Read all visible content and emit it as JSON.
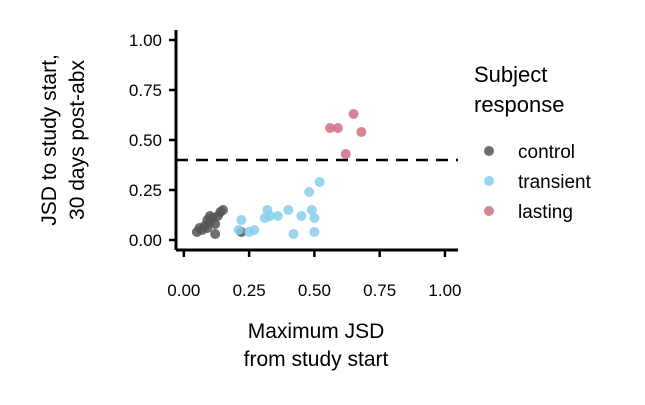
{
  "chart_data": {
    "type": "scatter",
    "title": "",
    "xlabel_lines": [
      "Maximum JSD",
      "from study start"
    ],
    "ylabel_lines": [
      "JSD to study start,",
      "30 days post-abx"
    ],
    "xlim": [
      -0.03,
      1.05
    ],
    "ylim": [
      -0.05,
      1.05
    ],
    "x_ticks": [
      0.0,
      0.25,
      0.5,
      0.75,
      1.0
    ],
    "x_tick_labels": [
      "0.00",
      "0.25",
      "0.50",
      "0.75",
      "1.00"
    ],
    "y_ticks": [
      0.0,
      0.25,
      0.5,
      0.75,
      1.0
    ],
    "y_tick_labels": [
      "0.00",
      "0.25",
      "0.50",
      "0.75",
      "1.00"
    ],
    "hline": 0.4,
    "grid": false,
    "legend": {
      "title_lines": [
        "Subject",
        "response"
      ],
      "placement": "right"
    },
    "series": [
      {
        "name": "control",
        "color": "#555555",
        "points": [
          [
            0.05,
            0.04
          ],
          [
            0.07,
            0.05
          ],
          [
            0.08,
            0.07
          ],
          [
            0.09,
            0.06
          ],
          [
            0.1,
            0.09
          ],
          [
            0.11,
            0.11
          ],
          [
            0.12,
            0.08
          ],
          [
            0.12,
            0.03
          ],
          [
            0.13,
            0.12
          ],
          [
            0.14,
            0.14
          ],
          [
            0.15,
            0.15
          ],
          [
            0.1,
            0.12
          ],
          [
            0.09,
            0.1
          ],
          [
            0.06,
            0.06
          ],
          [
            0.22,
            0.04
          ]
        ]
      },
      {
        "name": "transient",
        "color": "#87CEEB",
        "points": [
          [
            0.21,
            0.05
          ],
          [
            0.22,
            0.1
          ],
          [
            0.25,
            0.04
          ],
          [
            0.27,
            0.05
          ],
          [
            0.31,
            0.11
          ],
          [
            0.32,
            0.15
          ],
          [
            0.33,
            0.12
          ],
          [
            0.36,
            0.12
          ],
          [
            0.4,
            0.15
          ],
          [
            0.42,
            0.03
          ],
          [
            0.45,
            0.12
          ],
          [
            0.48,
            0.24
          ],
          [
            0.49,
            0.15
          ],
          [
            0.5,
            0.11
          ],
          [
            0.5,
            0.04
          ],
          [
            0.52,
            0.29
          ]
        ]
      },
      {
        "name": "lasting",
        "color": "#CD6F82",
        "points": [
          [
            0.56,
            0.56
          ],
          [
            0.59,
            0.56
          ],
          [
            0.62,
            0.43
          ],
          [
            0.65,
            0.63
          ],
          [
            0.68,
            0.54
          ]
        ]
      }
    ]
  }
}
